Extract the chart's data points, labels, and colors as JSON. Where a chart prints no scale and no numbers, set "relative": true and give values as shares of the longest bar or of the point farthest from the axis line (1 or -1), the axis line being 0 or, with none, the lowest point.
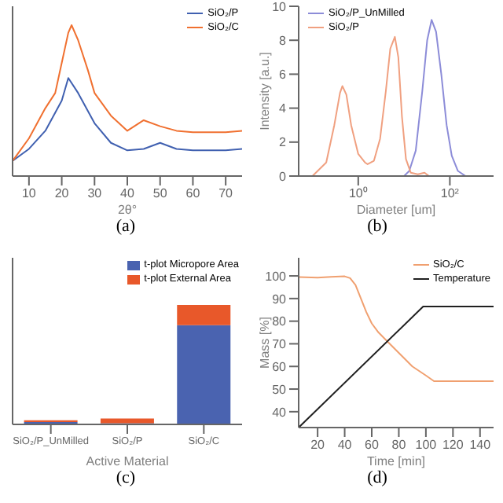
{
  "chart_data": [
    {
      "type": "line",
      "relative": true,
      "xlabel": "2θ°",
      "xlim": [
        5,
        75
      ],
      "xticks": [
        10,
        20,
        30,
        40,
        50,
        60,
        70
      ],
      "legend": "top right",
      "annotations": [
        "(a)"
      ],
      "series": [
        {
          "name": "SiO₂/P",
          "color": "#4060b0",
          "x": [
            5,
            10,
            15,
            20,
            22,
            25,
            30,
            35,
            40,
            45,
            50,
            55,
            60,
            70,
            75
          ],
          "values": [
            0.1,
            0.18,
            0.3,
            0.5,
            0.65,
            0.55,
            0.35,
            0.22,
            0.17,
            0.18,
            0.22,
            0.18,
            0.17,
            0.17,
            0.18
          ]
        },
        {
          "name": "SiO₂/C",
          "color": "#f07030",
          "x": [
            5,
            10,
            15,
            18,
            20,
            22,
            23,
            25,
            28,
            30,
            35,
            40,
            45,
            50,
            55,
            60,
            70,
            75
          ],
          "values": [
            0.1,
            0.25,
            0.45,
            0.55,
            0.75,
            0.95,
            1,
            0.9,
            0.7,
            0.55,
            0.4,
            0.3,
            0.37,
            0.33,
            0.3,
            0.29,
            0.29,
            0.3
          ]
        }
      ]
    },
    {
      "type": "line",
      "log": "x",
      "xlabel": "Diameter [um]",
      "ylabel": "Intensity [a.u.]",
      "xlim": [
        0.05,
        900
      ],
      "xticks": [
        {
          "value": 1,
          "label": "10⁰"
        },
        {
          "value": 100,
          "label": "10²"
        }
      ],
      "ylim": [
        0,
        10
      ],
      "yticks": [
        0,
        2,
        4,
        6,
        8,
        10
      ],
      "legend": "top left",
      "annotations": [
        "(b)"
      ],
      "series": [
        {
          "name": "SiO₂/P_UnMilled",
          "color": "#8c8cd8",
          "x": [
            0.05,
            10,
            13,
            18,
            25,
            32,
            40,
            50,
            65,
            85,
            110,
            150,
            220,
            900
          ],
          "values": [
            0,
            0,
            0.3,
            1.5,
            5,
            8,
            9.2,
            8.5,
            6,
            3,
            1.2,
            0.3,
            0,
            0
          ]
        },
        {
          "name": "SiO₂/P",
          "color": "#f0a080",
          "x": [
            0.05,
            0.07,
            0.1,
            0.2,
            0.3,
            0.4,
            0.45,
            0.55,
            0.7,
            1,
            1.4,
            1.6,
            2.2,
            3,
            4,
            5,
            6.3,
            7.5,
            9,
            11,
            14,
            20,
            28,
            35,
            900
          ],
          "values": [
            0,
            0,
            0,
            0.8,
            3,
            4.9,
            5.3,
            4.8,
            3,
            1.3,
            0.8,
            0.7,
            0.9,
            2.2,
            5,
            7.5,
            8.2,
            7,
            3.5,
            1,
            0.2,
            0.1,
            0.2,
            0,
            0
          ]
        }
      ]
    },
    {
      "type": "bar",
      "relative": true,
      "stacked": true,
      "xlabel": "Active Material",
      "categories": [
        "SiO₂/P_UnMilled",
        "SiO₂/P",
        "SiO₂/C"
      ],
      "legend": "top right",
      "annotations": [
        "(c)"
      ],
      "series": [
        {
          "name": "t-plot Micropore Area",
          "color": "#4a63b0",
          "values": [
            0.02,
            0.01,
            0.83
          ]
        },
        {
          "name": "t-plot External Area",
          "color": "#e8582a",
          "values": [
            0.015,
            0.04,
            0.17
          ]
        }
      ]
    },
    {
      "type": "line",
      "xlabel": "Time [min]",
      "ylabel": "Mass [%]",
      "xlim": [
        6,
        150
      ],
      "xticks": [
        20,
        40,
        60,
        80,
        100,
        120,
        140
      ],
      "ylim": [
        33,
        108
      ],
      "yticks": [
        40,
        50,
        60,
        70,
        80,
        90,
        100
      ],
      "legend": "top right",
      "annotations": [
        "(d)"
      ],
      "series": [
        {
          "name": "SiO₂/C",
          "color": "#f0a070",
          "x": [
            6,
            20,
            30,
            40,
            44,
            48,
            52,
            56,
            60,
            65,
            70,
            80,
            90,
            100,
            106,
            150
          ],
          "values": [
            99.5,
            99.2,
            99.6,
            99.8,
            99,
            96,
            90,
            84,
            79,
            75,
            72,
            66,
            60,
            56,
            53.5,
            53.5
          ]
        },
        {
          "name": "Temperature",
          "color": "#202020",
          "x": [
            6,
            98,
            150
          ],
          "values": [
            33,
            86.5,
            86.5
          ]
        }
      ]
    }
  ]
}
